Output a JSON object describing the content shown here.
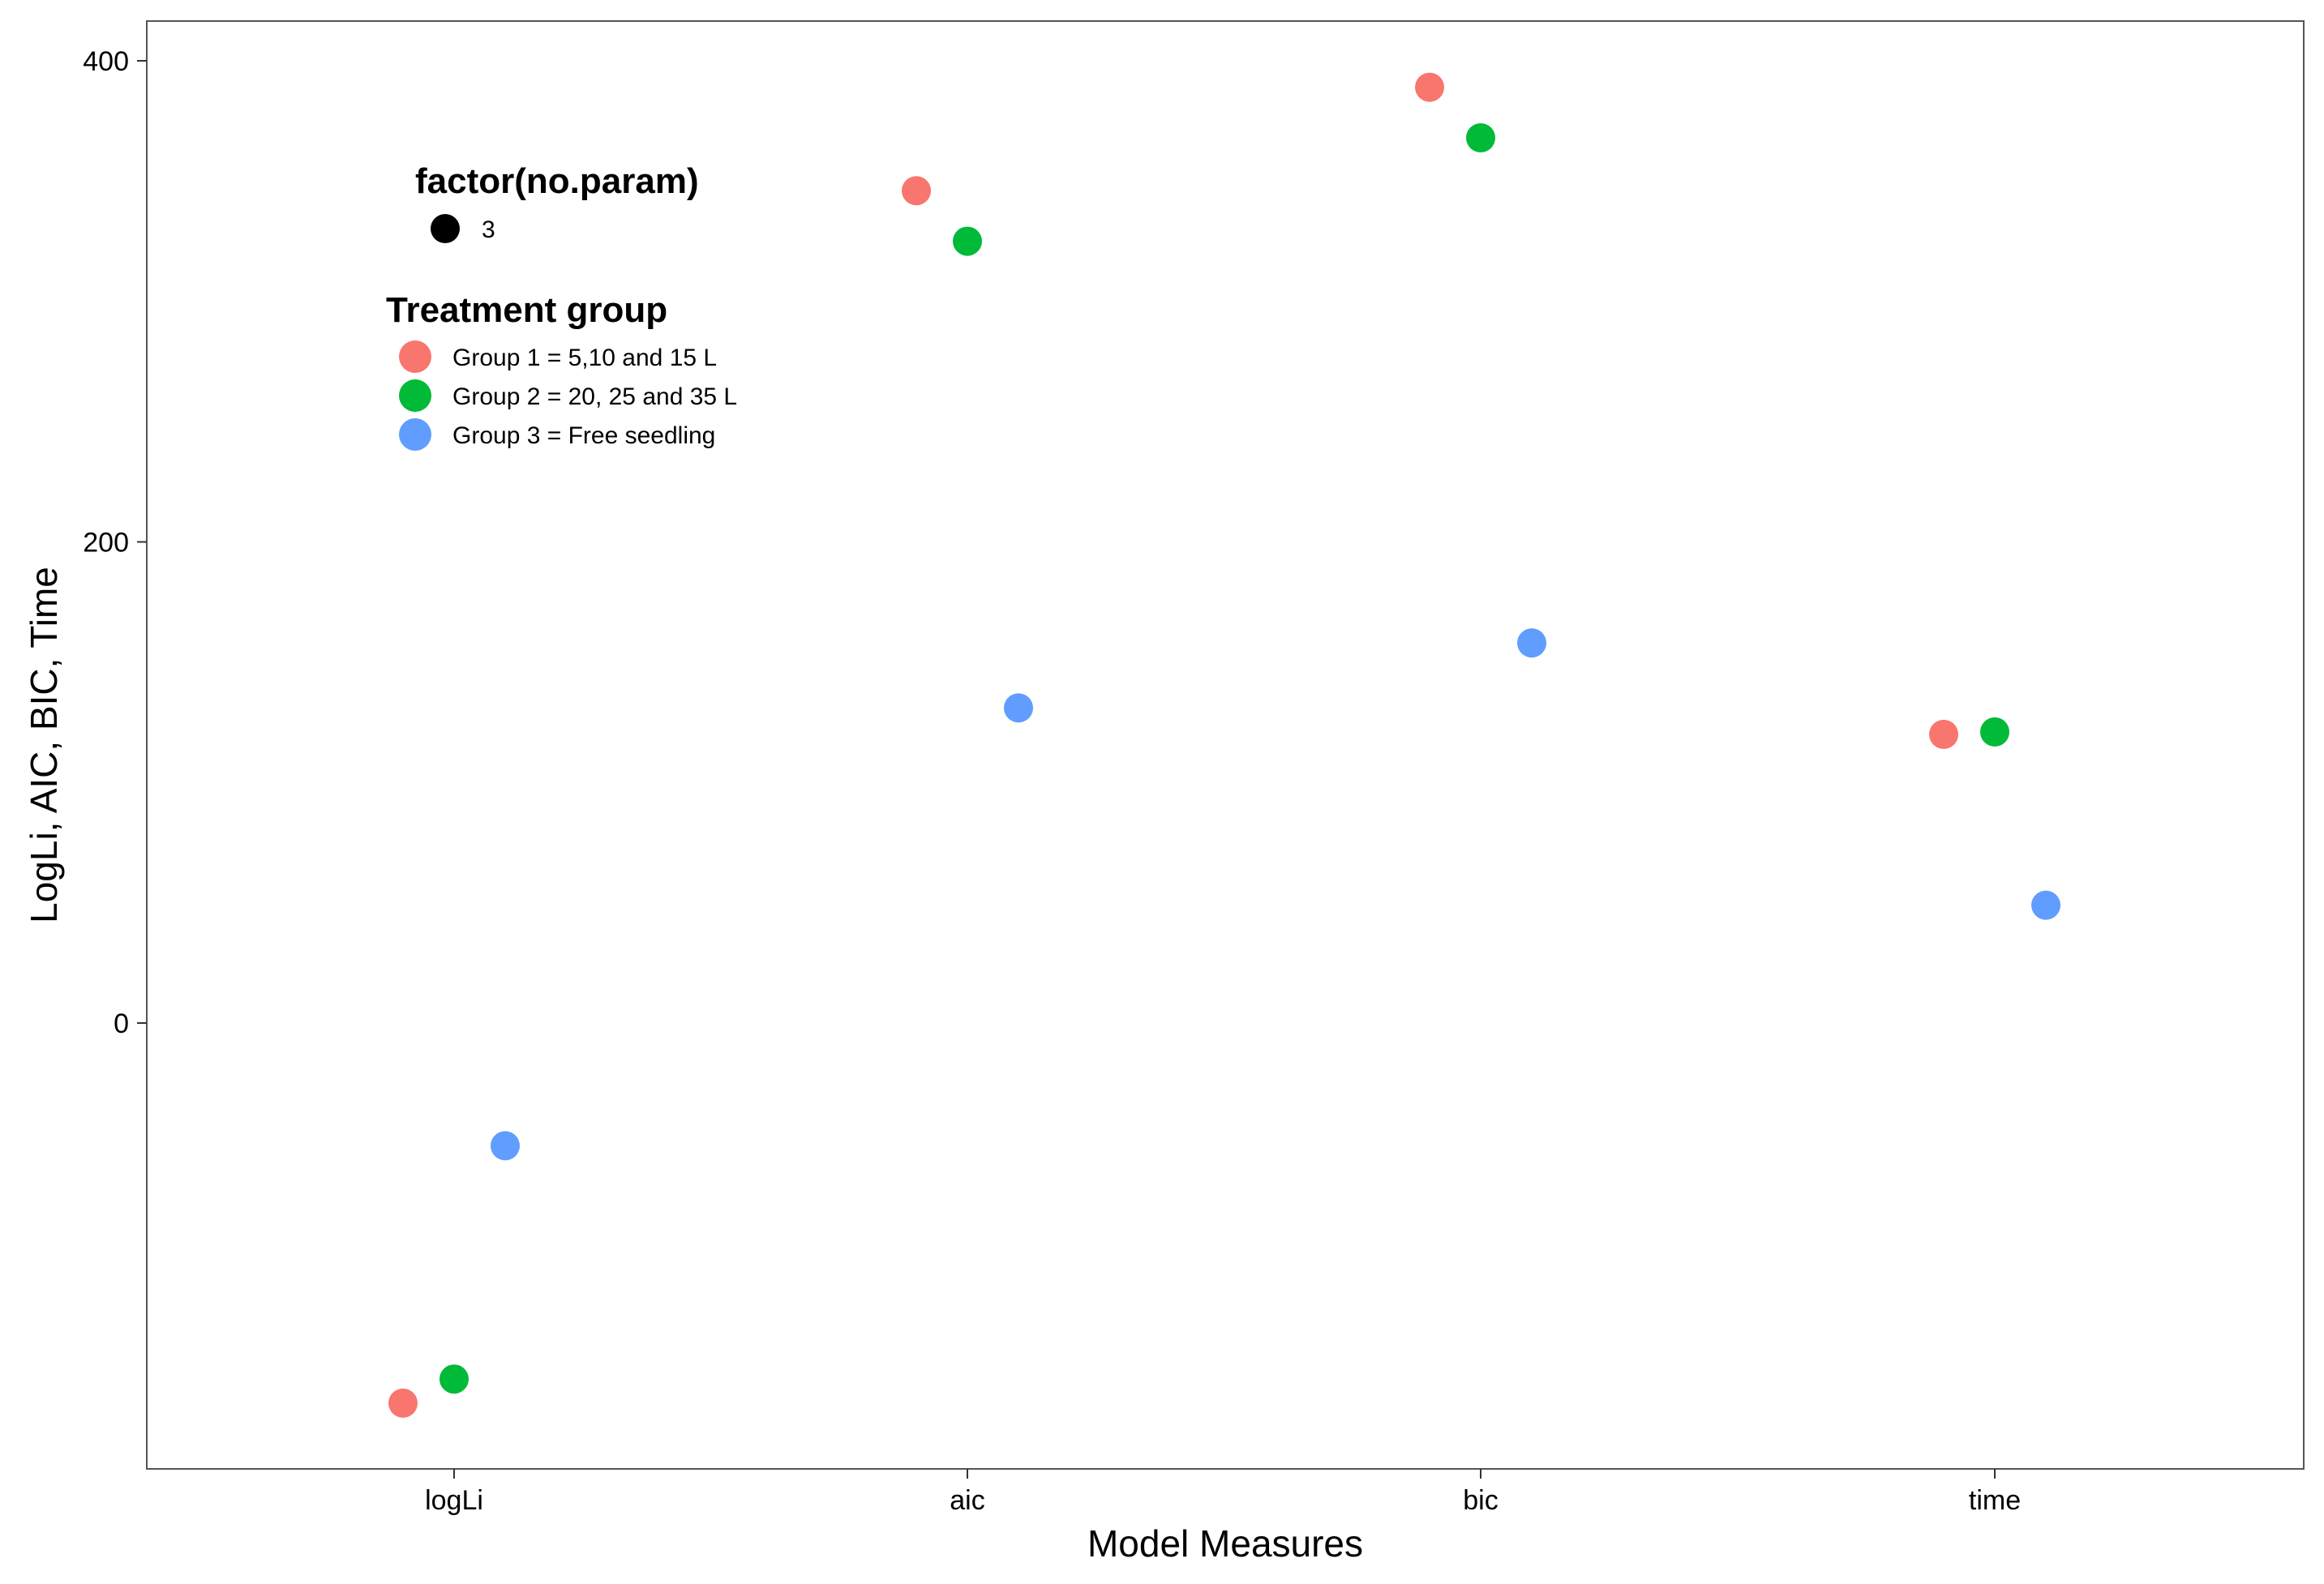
{
  "chart_data": {
    "type": "scatter",
    "xlabel": "Model Measures",
    "ylabel": "LogLi, AIC, BIC, Time",
    "categories": [
      "logLi",
      "aic",
      "bic",
      "time"
    ],
    "y_ticks": [
      0,
      200,
      400
    ],
    "y_tick_labels": [
      "0",
      "200",
      "400"
    ],
    "ylim": [
      -185,
      415
    ],
    "grid": false,
    "series": [
      {
        "name": "Group 1 = 5,10 and 15 L",
        "color": "#F8766D",
        "values": [
          -158,
          346,
          389,
          120
        ]
      },
      {
        "name": "Group 2 = 20, 25 and 35 L",
        "color": "#00BA38",
        "values": [
          -148,
          325,
          368,
          121
        ]
      },
      {
        "name": "Group 3 = Free seedling",
        "color": "#619CFF",
        "values": [
          -51,
          131,
          158,
          49
        ]
      }
    ],
    "legends": [
      {
        "title": "factor(no.param)",
        "entries": [
          {
            "label": "3",
            "color": "#000000"
          }
        ]
      },
      {
        "title": "Treatment group",
        "entries_from": "series"
      }
    ],
    "legend_placement": "inside top-left"
  }
}
